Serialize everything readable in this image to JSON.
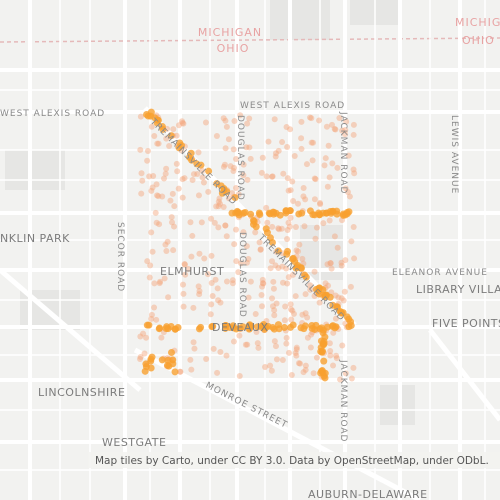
{
  "map": {
    "labels": {
      "michigan_1": "MICHIGAN",
      "ohio_1": "OHIO",
      "michigan_2": "MICHIGAN",
      "ohio_2": "OHIO",
      "west_alexis_1": "WEST ALEXIS ROAD",
      "west_alexis_2": "WEST ALEXIS ROAD",
      "douglas_1": "DOUGLAS ROAD",
      "douglas_2": "DOUGLAS ROAD",
      "jackman_1": "JACKMAN ROAD",
      "jackman_2": "JACKMAN ROAD",
      "lewis": "LEWIS AVENUE",
      "tremainsville_1": "TREMAINSVILLE ROAD",
      "tremainsville_2": "TREMAINSVILLE ROAD",
      "secor": "SECOR ROAD",
      "franklin_park": "NKLIN PARK",
      "elmhurst": "ELMHURST",
      "eleanor": "ELEANOR AVENUE",
      "library_village": "LIBRARY VILLAGE",
      "five_points": "FIVE POINTS",
      "deveaux": "DEVEAUX",
      "lincolnshire": "LINCOLNSHIRE",
      "monroe": "MONROE STREET",
      "westgate": "WESTGATE",
      "auburn_delaware": "AUBURN-DELAWARE"
    }
  },
  "attribution": "Map tiles by Carto, under CC BY 3.0. Data by OpenStreetMap, under ODbL."
}
